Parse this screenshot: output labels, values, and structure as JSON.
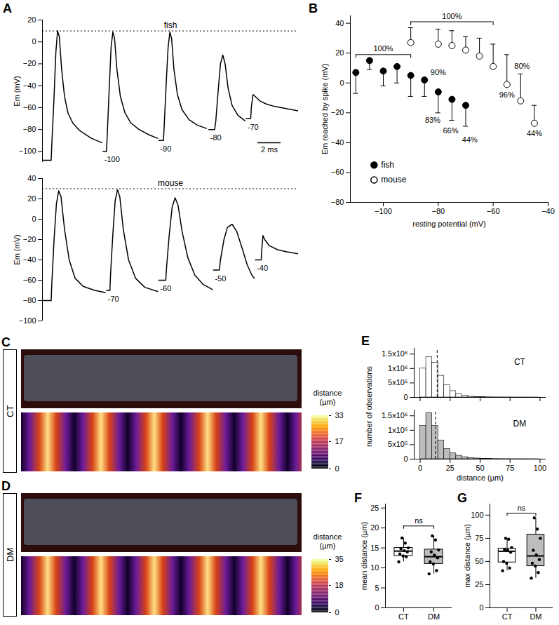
{
  "chart_data": [
    {
      "panel": "A",
      "type": "line",
      "title": "fish",
      "ylabel": "Em (mV)",
      "tick_labels": "y",
      "color": "#000000",
      "xlim": [
        0,
        22
      ],
      "ylim": [
        -110,
        20
      ],
      "yticks": [
        -100,
        -80,
        -60,
        -40,
        -20,
        0,
        20
      ],
      "reference_line": 10,
      "scalebar": {
        "x": 18.5,
        "y": -92,
        "length": 2,
        "label": "2 ms"
      },
      "traces": [
        {
          "rest_label": null,
          "x": [
            0,
            0.75,
            0.8,
            1.0,
            1.15,
            1.3,
            1.45,
            1.65,
            1.9,
            2.2,
            2.6,
            3.2,
            4.2,
            5.1
          ],
          "values": [
            -108,
            -108,
            -95,
            -50,
            -10,
            10,
            5,
            -25,
            -50,
            -65,
            -74,
            -81,
            -88,
            -92
          ]
        },
        {
          "rest_label": -100,
          "x": [
            5.2,
            5.5,
            5.55,
            5.75,
            5.9,
            6.05,
            6.2,
            6.4,
            6.7,
            7.1,
            7.6,
            8.3,
            9.2,
            9.9
          ],
          "values": [
            -100,
            -100,
            -90,
            -40,
            -5,
            9,
            3,
            -25,
            -50,
            -65,
            -74,
            -80,
            -85,
            -88
          ]
        },
        {
          "rest_label": -90,
          "x": [
            10.0,
            10.4,
            10.45,
            10.65,
            10.8,
            10.95,
            11.1,
            11.3,
            11.6,
            12.0,
            12.6,
            13.3,
            14.1
          ],
          "values": [
            -90,
            -90,
            -80,
            -35,
            -5,
            9,
            3,
            -25,
            -48,
            -62,
            -71,
            -76,
            -79
          ]
        },
        {
          "rest_label": -80,
          "x": [
            14.3,
            14.8,
            14.9,
            15.1,
            15.3,
            15.5,
            15.7,
            15.95,
            16.3,
            16.8,
            17.4
          ],
          "values": [
            -80,
            -80,
            -72,
            -45,
            -20,
            -12,
            -20,
            -42,
            -58,
            -67,
            -72
          ]
        },
        {
          "rest_label": -70,
          "x": [
            17.5,
            17.9,
            17.95,
            18.1,
            18.3,
            18.7,
            19.3,
            20.0,
            21.0,
            22.0
          ],
          "values": [
            -70,
            -70,
            -60,
            -48,
            -50,
            -54,
            -57,
            -59,
            -61,
            -63
          ]
        }
      ]
    },
    {
      "panel": "A",
      "type": "line",
      "title": "mouse",
      "ylabel": "Em (mV)",
      "tick_labels": "y",
      "color": "#000000",
      "xlim": [
        0,
        22
      ],
      "ylim": [
        -100,
        40
      ],
      "yticks": [
        -100,
        -80,
        -60,
        -40,
        -20,
        0,
        20,
        40
      ],
      "reference_line": 30,
      "traces": [
        {
          "rest_label": null,
          "x": [
            0,
            0.75,
            0.8,
            1.0,
            1.2,
            1.4,
            1.6,
            1.9,
            2.3,
            2.8,
            3.5,
            4.5,
            5.4
          ],
          "values": [
            -80,
            -80,
            -65,
            -20,
            15,
            28,
            22,
            -10,
            -40,
            -58,
            -66,
            -70,
            -72
          ]
        },
        {
          "rest_label": -70,
          "x": [
            5.5,
            5.8,
            5.85,
            6.05,
            6.25,
            6.45,
            6.65,
            6.95,
            7.4,
            8.0,
            8.8,
            9.9
          ],
          "values": [
            -70,
            -70,
            -55,
            -15,
            18,
            29,
            22,
            -10,
            -40,
            -58,
            -67,
            -71
          ]
        },
        {
          "rest_label": -60,
          "x": [
            10.0,
            10.6,
            10.65,
            10.9,
            11.15,
            11.4,
            11.65,
            12.0,
            12.5,
            13.1,
            13.8,
            14.6
          ],
          "values": [
            -60,
            -60,
            -50,
            -15,
            12,
            21,
            14,
            -12,
            -38,
            -55,
            -64,
            -69
          ]
        },
        {
          "rest_label": -50,
          "x": [
            14.7,
            15.2,
            15.3,
            15.6,
            15.9,
            16.3,
            16.7,
            17.2,
            17.6,
            18.0,
            18.2
          ],
          "values": [
            -50,
            -50,
            -40,
            -20,
            -8,
            -5,
            -12,
            -30,
            -45,
            -55,
            -58
          ]
        },
        {
          "rest_label": -40,
          "x": [
            18.3,
            18.8,
            18.85,
            18.95,
            19.1,
            19.5,
            20.2,
            21.0,
            22.0
          ],
          "values": [
            -40,
            -40,
            -30,
            -16,
            -20,
            -26,
            -30,
            -32,
            -34
          ]
        }
      ]
    },
    {
      "panel": "B",
      "type": "scatter",
      "xlabel": "resting potential (mV)",
      "ylabel": "Em reached by spike (mV)",
      "xlim": [
        -112,
        -40
      ],
      "xticks": [
        -100,
        -80,
        -60,
        -40
      ],
      "ylim": [
        -80,
        45
      ],
      "yticks": [
        -80,
        -60,
        -40,
        -20,
        0,
        20,
        40
      ],
      "legend": "bottom-left",
      "series": [
        {
          "name": "fish",
          "color": "#000000",
          "marker": "filled",
          "x": [
            -110,
            -105,
            -100,
            -95,
            -90,
            -85,
            -80,
            -75,
            -70
          ],
          "values": [
            7,
            15,
            8,
            11,
            5,
            2,
            -6,
            -11,
            -15
          ],
          "error_low": [
            14,
            6,
            10,
            11,
            14,
            11,
            14,
            14,
            14
          ],
          "error_high": [
            0,
            0,
            0,
            0,
            0,
            0,
            0,
            0,
            0
          ]
        },
        {
          "name": "mouse",
          "color": "#000000",
          "marker": "open",
          "x": [
            -90,
            -80,
            -75,
            -70,
            -65,
            -60,
            -55,
            -50,
            -45
          ],
          "values": [
            27,
            26,
            25,
            22,
            18,
            11,
            -1,
            -12,
            -27
          ],
          "error_low": [
            0,
            0,
            0,
            0,
            0,
            0,
            0,
            0,
            0
          ],
          "error_high": [
            10,
            10,
            10,
            9,
            12,
            15,
            20,
            18,
            12
          ]
        }
      ],
      "brackets": [
        {
          "x1": -110,
          "x2": -90,
          "y": 19,
          "label": "100%"
        },
        {
          "x1": -90,
          "x2": -60,
          "y": 41,
          "label": "100%"
        }
      ],
      "annotations": [
        {
          "text": "90%",
          "x": -80,
          "y": 7
        },
        {
          "text": "83%",
          "x": -82,
          "y": -25
        },
        {
          "text": "66%",
          "x": -75.5,
          "y": -32
        },
        {
          "text": "44%",
          "x": -68.5,
          "y": -38
        },
        {
          "text": "80%",
          "x": -49.5,
          "y": 11
        },
        {
          "text": "96%",
          "x": -55,
          "y": -8
        },
        {
          "text": "44%",
          "x": -45,
          "y": -34
        }
      ]
    },
    {
      "panel": "C",
      "type": "image",
      "label": "CT",
      "colorbar": {
        "title": "distance (µm)",
        "lim": [
          0,
          33
        ],
        "ticks": [
          0,
          17,
          33
        ]
      }
    },
    {
      "panel": "D",
      "type": "image",
      "label": "DM",
      "colorbar": {
        "title": "distance (µm)",
        "lim": [
          0,
          35
        ],
        "ticks": [
          0,
          18,
          35
        ]
      }
    },
    {
      "panel": "E",
      "type": "histogram",
      "xlabel": "distance (µm)",
      "ylabel": "number of observations",
      "bins": [
        0,
        5,
        10,
        15,
        20,
        25,
        30,
        35,
        40,
        45,
        50,
        55,
        60,
        65,
        70,
        75,
        80,
        85,
        90,
        95,
        100
      ],
      "xlim": [
        -5,
        105
      ],
      "xticks": [
        0,
        25,
        50,
        75,
        100
      ],
      "ylim": [
        0,
        1700000
      ],
      "yticks": [
        0,
        {
          "value": 500000,
          "label": "5x10⁵"
        },
        {
          "value": 1000000,
          "label": "1x10⁶"
        },
        {
          "value": 1500000,
          "label": "1.5x10⁶"
        }
      ],
      "series": [
        {
          "name": "CT",
          "color": "#ffffff",
          "mean": 14.2,
          "values": [
            1000000,
            1400000,
            1200000,
            750000,
            420000,
            220000,
            110000,
            55000,
            28000,
            14000,
            8000,
            5000,
            3000,
            2000,
            1500,
            1000,
            800,
            500,
            300,
            200
          ]
        },
        {
          "name": "DM",
          "color": "#bdbdbd",
          "mean": 12.8,
          "values": [
            1150000,
            1600000,
            1150000,
            650000,
            350000,
            200000,
            120000,
            70000,
            40000,
            25000,
            15000,
            9000,
            6000,
            4000,
            3000,
            2000,
            1500,
            1000,
            600,
            300
          ]
        }
      ]
    },
    {
      "panel": "F",
      "type": "box",
      "ylabel": "mean distance (µm)",
      "categories": [
        "CT",
        "DM"
      ],
      "colors": [
        "#ffffff",
        "#bdbdbd"
      ],
      "ylim": [
        0,
        26
      ],
      "yticks": [
        0,
        5,
        10,
        15,
        20,
        25
      ],
      "boxes": [
        {
          "whisker_low": 11.5,
          "q1": 13.0,
          "median": 14.2,
          "q3": 15.0,
          "whisker_high": 17.5,
          "points": [
            11.5,
            12.8,
            13.0,
            13.5,
            14.0,
            14.3,
            14.8,
            15.0,
            16.2,
            17.5
          ]
        },
        {
          "whisker_low": 8.5,
          "q1": 11.0,
          "median": 12.8,
          "q3": 14.6,
          "whisker_high": 18.0,
          "points": [
            8.5,
            9.3,
            11.0,
            11.5,
            12.5,
            13.2,
            14.0,
            14.5,
            17.0,
            18.0
          ]
        }
      ],
      "significance": {
        "label": "ns",
        "y": 20.5
      }
    },
    {
      "panel": "G",
      "type": "box",
      "ylabel": "max distance (µm)",
      "categories": [
        "CT",
        "DM"
      ],
      "colors": [
        "#ffffff",
        "#bdbdbd"
      ],
      "ylim": [
        0,
        112
      ],
      "yticks": [
        0,
        25,
        50,
        75,
        100
      ],
      "boxes": [
        {
          "whisker_low": 40,
          "q1": 49,
          "median": 61,
          "q3": 64,
          "whisker_high": 75,
          "points": [
            40,
            43,
            48,
            50,
            60,
            62,
            63,
            65,
            74,
            75
          ]
        },
        {
          "whisker_low": 32,
          "q1": 45,
          "median": 56,
          "q3": 79,
          "whisker_high": 97,
          "points": [
            32,
            38,
            45,
            48,
            52,
            57,
            62,
            75,
            85,
            97
          ]
        }
      ],
      "significance": {
        "label": "ns",
        "y": 102
      }
    }
  ]
}
